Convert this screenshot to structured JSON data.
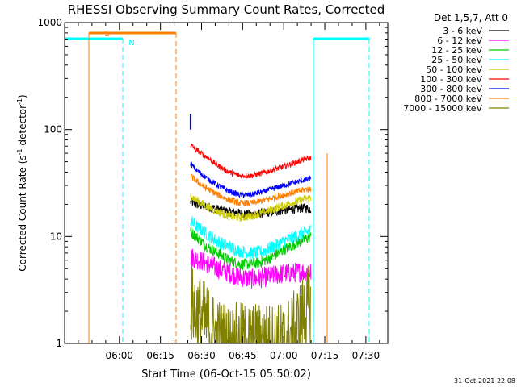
{
  "chart_data": {
    "type": "line",
    "title": "RHESSI Observing Summary Count Rates, Corrected",
    "xlabel": "Start Time (06-Oct-15 05:50:02)",
    "ylabel_parts": [
      "Corrected Count Rate (s",
      "-1",
      " detector",
      "-1",
      ")"
    ],
    "yscale": "log",
    "ylim": [
      1,
      1000
    ],
    "xlim_min": [
      -10,
      108
    ],
    "x_ticks": [
      {
        "value": 10,
        "label": "06:00"
      },
      {
        "value": 25,
        "label": "06:15"
      },
      {
        "value": 40,
        "label": "06:30"
      },
      {
        "value": 55,
        "label": "06:45"
      },
      {
        "value": 70,
        "label": "07:00"
      },
      {
        "value": 85,
        "label": "07:15"
      },
      {
        "value": 100,
        "label": "07:30"
      }
    ],
    "y_ticks": [
      {
        "value": 1,
        "label": "1"
      },
      {
        "value": 10,
        "label": "10"
      },
      {
        "value": 100,
        "label": "100"
      },
      {
        "value": 1000,
        "label": "1000"
      }
    ],
    "legend": {
      "title": "Det 1,5,7, Att 0",
      "placement": "right"
    },
    "series": [
      {
        "name": "3 - 6 keV",
        "color": "#000000",
        "x": [
          36,
          38,
          42,
          46,
          50,
          54,
          58,
          62,
          66,
          70,
          74,
          78,
          80
        ],
        "values": [
          21,
          20,
          19,
          18,
          17,
          16.5,
          16,
          16.5,
          17,
          17.5,
          18,
          18.5,
          18
        ]
      },
      {
        "name": "6 - 12 keV",
        "color": "#ff00ff",
        "x": [
          36,
          38,
          42,
          46,
          50,
          54,
          58,
          62,
          66,
          70,
          74,
          78,
          80
        ],
        "values": [
          6.5,
          6.2,
          5.6,
          5,
          4.6,
          4.2,
          4,
          4.1,
          4.3,
          4.5,
          4.6,
          4.7,
          4.6
        ]
      },
      {
        "name": "12 - 25 keV",
        "color": "#00cc00",
        "x": [
          36,
          38,
          42,
          46,
          50,
          54,
          58,
          62,
          66,
          70,
          74,
          78,
          80
        ],
        "values": [
          11,
          10,
          8,
          7,
          6,
          5.5,
          5.5,
          5.8,
          6.5,
          7.5,
          8.5,
          9.5,
          10
        ]
      },
      {
        "name": "25 - 50 keV",
        "color": "#00ffff",
        "x": [
          36,
          38,
          42,
          46,
          50,
          54,
          58,
          62,
          66,
          70,
          74,
          78,
          80
        ],
        "values": [
          14,
          12.5,
          10.5,
          9,
          8,
          7.3,
          7,
          7.2,
          8,
          9,
          10,
          11,
          11.5
        ]
      },
      {
        "name": "50 - 100 keV",
        "color": "#cccc00",
        "x": [
          36,
          38,
          42,
          46,
          50,
          54,
          58,
          62,
          66,
          70,
          74,
          78,
          80
        ],
        "values": [
          24,
          22,
          19,
          17,
          15.5,
          15,
          15.5,
          16.5,
          18,
          19.5,
          21,
          22.5,
          23
        ]
      },
      {
        "name": "100 - 300 keV",
        "color": "#ff0000",
        "x": [
          36,
          38,
          42,
          46,
          50,
          54,
          58,
          62,
          66,
          70,
          74,
          78,
          80
        ],
        "values": [
          72,
          65,
          55,
          46,
          40,
          37,
          37,
          39,
          42,
          45,
          49,
          53,
          54
        ]
      },
      {
        "name": "300 - 800 keV",
        "color": "#0000ff",
        "x": [
          36,
          38,
          42,
          46,
          50,
          54,
          58,
          62,
          66,
          70,
          74,
          78,
          80
        ],
        "values": [
          48,
          42,
          35,
          30,
          26.5,
          24.5,
          24.5,
          26,
          28,
          30,
          32,
          34,
          35
        ]
      },
      {
        "name": "800 - 7000 keV",
        "color": "#ff7f00",
        "x": [
          36,
          38,
          42,
          46,
          50,
          54,
          58,
          62,
          66,
          70,
          74,
          78,
          80
        ],
        "values": [
          37,
          33,
          28,
          24.5,
          22,
          20.5,
          20.5,
          21.5,
          23,
          24.5,
          26,
          27.5,
          28
        ]
      },
      {
        "name": "7000 - 15000 keV",
        "color": "#808000",
        "x": [
          36,
          38,
          42,
          46,
          50,
          54,
          58,
          62,
          66,
          70,
          74,
          78,
          80
        ],
        "values": [
          2.5,
          2,
          1.5,
          1.1,
          1,
          1,
          1,
          1,
          1,
          1,
          1.3,
          2,
          2.5
        ]
      }
    ],
    "annotations": [
      {
        "text": "S",
        "color": "#ff7f00",
        "x": 5.5,
        "y": 800
      },
      {
        "text": "N",
        "color": "#00ffff",
        "x": 14.5,
        "y": 660
      }
    ],
    "footer": "31-Oct-2021 22:08"
  }
}
